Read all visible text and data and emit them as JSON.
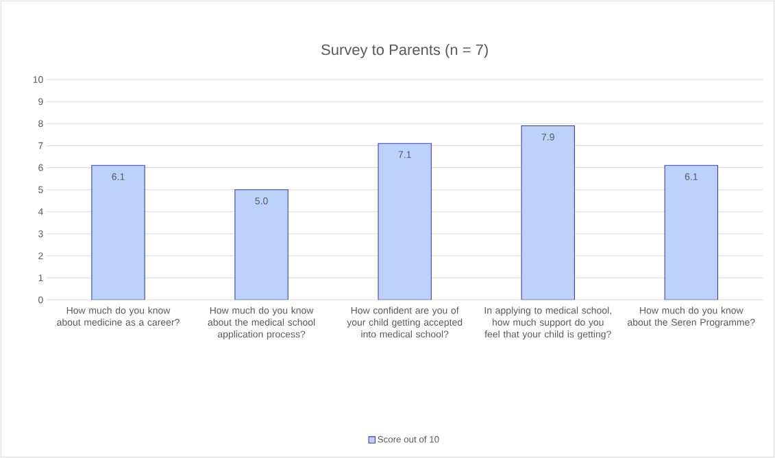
{
  "chart_data": {
    "type": "bar",
    "title": "Survey to Parents (n = 7)",
    "categories": [
      "How much do you know about medicine as a career?",
      "How much do you know about the medical school application process?",
      "How confident are you of your child getting accepted into medical school?",
      "In applying to medical school, how much support do you feel that your child is getting?",
      "How much do you know about the Seren Programme?"
    ],
    "series": [
      {
        "name": "Score out of 10",
        "color": "#bcd2fb",
        "values": [
          6.1,
          5.0,
          7.1,
          7.9,
          6.1
        ],
        "value_labels": [
          "6.1",
          "5.0",
          "7.1",
          "7.9",
          "6.1"
        ]
      }
    ],
    "ylim": [
      0,
      10
    ],
    "yticks": [
      0,
      1,
      2,
      3,
      4,
      5,
      6,
      7,
      8,
      9,
      10
    ],
    "grid": "y",
    "legend": "bottom"
  }
}
